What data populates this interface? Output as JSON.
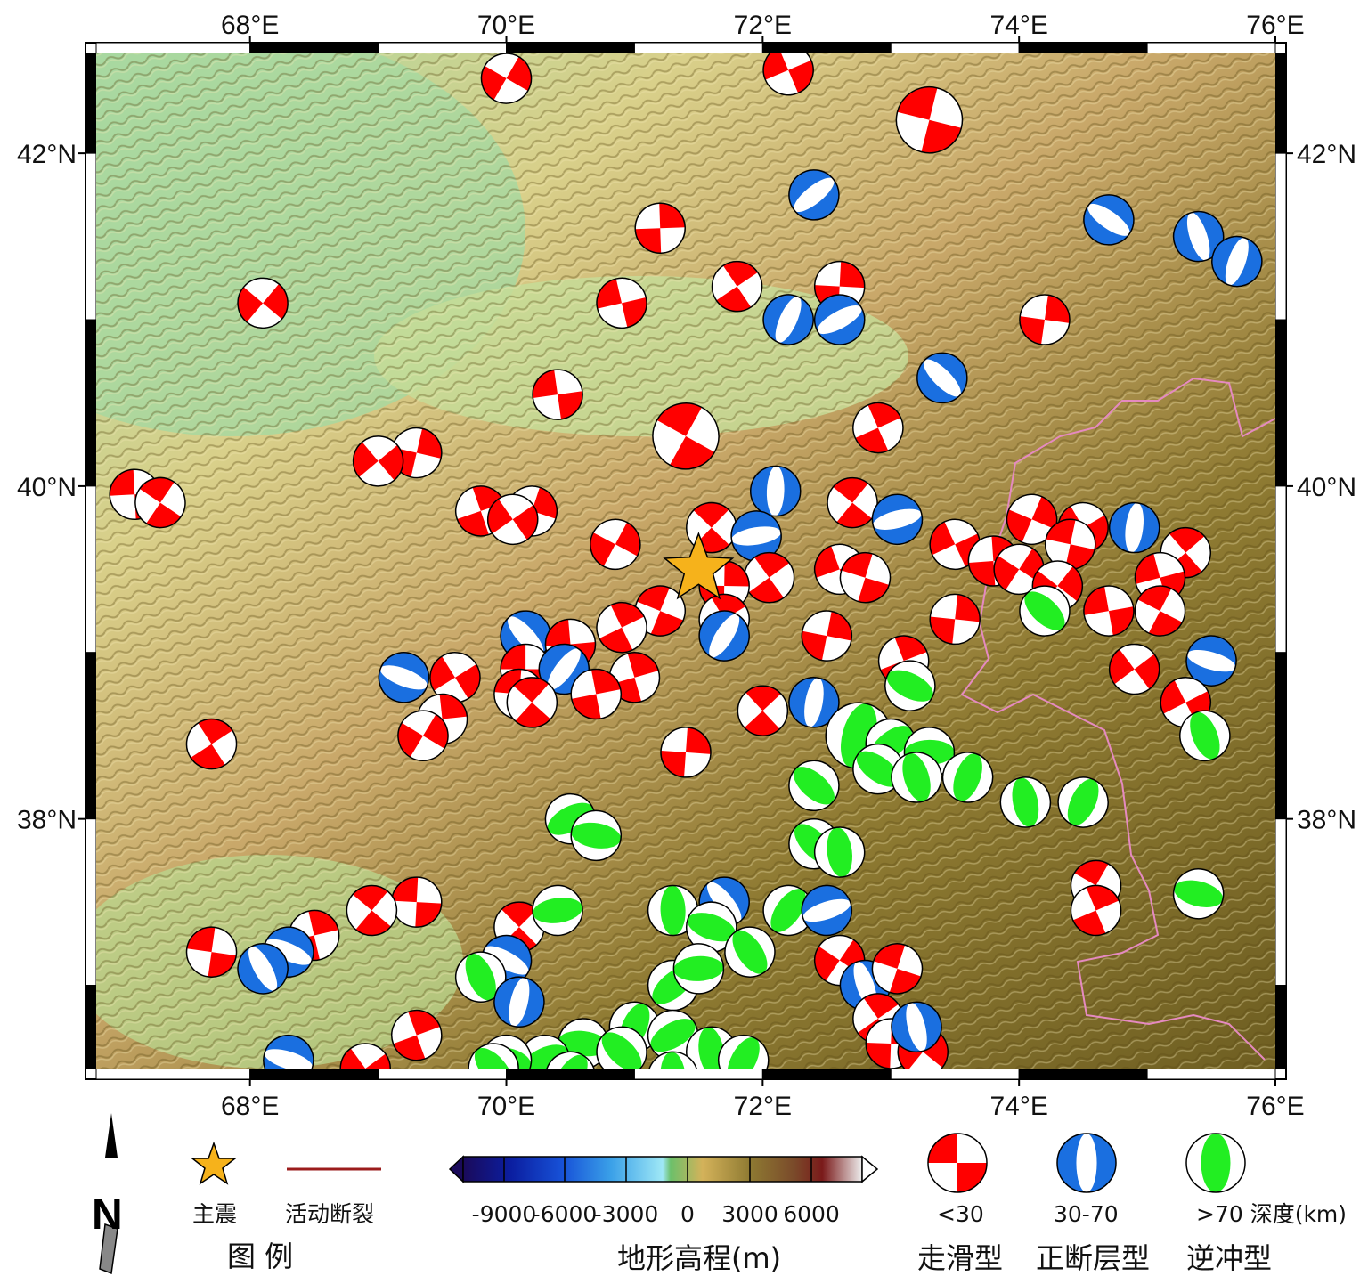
{
  "map": {
    "lon_range": [
      66.8,
      76.0
    ],
    "lat_range": [
      36.5,
      42.6
    ],
    "lon_ticks": [
      {
        "value": 68,
        "label": "68°E"
      },
      {
        "value": 70,
        "label": "70°E"
      },
      {
        "value": 72,
        "label": "72°E"
      },
      {
        "value": 74,
        "label": "74°E"
      },
      {
        "value": 76,
        "label": "76°E"
      }
    ],
    "lat_ticks": [
      {
        "value": 42,
        "label": "42°N"
      },
      {
        "value": 40,
        "label": "40°N"
      },
      {
        "value": 38,
        "label": "38°N"
      }
    ],
    "terrain_colors": {
      "lowland": "#a8d8a0",
      "plain": "#d9d08a",
      "foothill": "#c9a86a",
      "mountain": "#8e7a32",
      "high": "#6f5f22"
    },
    "border_color": "#e58ac0",
    "mainshock": {
      "lon": 71.5,
      "lat": 39.5,
      "color": "#f6b21b"
    },
    "mechanisms": [
      {
        "lon": 70.0,
        "lat": 42.45,
        "type": "strike-slip",
        "size": "m"
      },
      {
        "lon": 72.2,
        "lat": 42.5,
        "type": "strike-slip",
        "size": "m"
      },
      {
        "lon": 73.3,
        "lat": 42.2,
        "type": "strike-slip",
        "size": "l"
      },
      {
        "lon": 72.4,
        "lat": 41.75,
        "type": "normal",
        "size": "m"
      },
      {
        "lon": 71.2,
        "lat": 41.55,
        "type": "strike-slip",
        "size": "m"
      },
      {
        "lon": 74.7,
        "lat": 41.6,
        "type": "normal",
        "size": "m"
      },
      {
        "lon": 75.4,
        "lat": 41.5,
        "type": "normal",
        "size": "m"
      },
      {
        "lon": 75.7,
        "lat": 41.35,
        "type": "normal",
        "size": "m"
      },
      {
        "lon": 71.8,
        "lat": 41.2,
        "type": "strike-slip",
        "size": "m"
      },
      {
        "lon": 72.6,
        "lat": 41.2,
        "type": "strike-slip",
        "size": "m"
      },
      {
        "lon": 68.1,
        "lat": 41.1,
        "type": "strike-slip",
        "size": "m"
      },
      {
        "lon": 70.9,
        "lat": 41.1,
        "type": "strike-slip",
        "size": "m"
      },
      {
        "lon": 72.2,
        "lat": 41.0,
        "type": "normal",
        "size": "m"
      },
      {
        "lon": 72.6,
        "lat": 41.0,
        "type": "normal",
        "size": "m"
      },
      {
        "lon": 74.2,
        "lat": 41.0,
        "type": "strike-slip",
        "size": "m"
      },
      {
        "lon": 73.4,
        "lat": 40.65,
        "type": "normal",
        "size": "m"
      },
      {
        "lon": 70.4,
        "lat": 40.55,
        "type": "strike-slip",
        "size": "m"
      },
      {
        "lon": 71.4,
        "lat": 40.3,
        "type": "strike-slip",
        "size": "l"
      },
      {
        "lon": 72.9,
        "lat": 40.35,
        "type": "strike-slip",
        "size": "m"
      },
      {
        "lon": 69.3,
        "lat": 40.2,
        "type": "strike-slip",
        "size": "m"
      },
      {
        "lon": 69.0,
        "lat": 40.15,
        "type": "strike-slip",
        "size": "m"
      },
      {
        "lon": 67.1,
        "lat": 39.95,
        "type": "strike-slip",
        "size": "m"
      },
      {
        "lon": 67.3,
        "lat": 39.9,
        "type": "strike-slip",
        "size": "m"
      },
      {
        "lon": 69.8,
        "lat": 39.85,
        "type": "strike-slip",
        "size": "m"
      },
      {
        "lon": 70.2,
        "lat": 39.85,
        "type": "strike-slip",
        "size": "m"
      },
      {
        "lon": 70.05,
        "lat": 39.8,
        "type": "strike-slip",
        "size": "m"
      },
      {
        "lon": 72.1,
        "lat": 39.97,
        "type": "normal",
        "size": "m"
      },
      {
        "lon": 72.7,
        "lat": 39.9,
        "type": "strike-slip",
        "size": "m"
      },
      {
        "lon": 73.05,
        "lat": 39.8,
        "type": "normal",
        "size": "m"
      },
      {
        "lon": 74.1,
        "lat": 39.8,
        "type": "strike-slip",
        "size": "m"
      },
      {
        "lon": 74.5,
        "lat": 39.75,
        "type": "strike-slip",
        "size": "m"
      },
      {
        "lon": 74.9,
        "lat": 39.75,
        "type": "normal",
        "size": "m"
      },
      {
        "lon": 71.6,
        "lat": 39.75,
        "type": "strike-slip",
        "size": "m"
      },
      {
        "lon": 71.95,
        "lat": 39.7,
        "type": "normal",
        "size": "m"
      },
      {
        "lon": 70.85,
        "lat": 39.65,
        "type": "strike-slip",
        "size": "m"
      },
      {
        "lon": 73.5,
        "lat": 39.65,
        "type": "strike-slip",
        "size": "m"
      },
      {
        "lon": 74.4,
        "lat": 39.65,
        "type": "strike-slip",
        "size": "m"
      },
      {
        "lon": 75.3,
        "lat": 39.6,
        "type": "strike-slip",
        "size": "m"
      },
      {
        "lon": 73.8,
        "lat": 39.55,
        "type": "strike-slip",
        "size": "m"
      },
      {
        "lon": 74.0,
        "lat": 39.5,
        "type": "strike-slip",
        "size": "m"
      },
      {
        "lon": 72.6,
        "lat": 39.5,
        "type": "strike-slip",
        "size": "m"
      },
      {
        "lon": 72.8,
        "lat": 39.45,
        "type": "strike-slip",
        "size": "m"
      },
      {
        "lon": 72.05,
        "lat": 39.45,
        "type": "strike-slip",
        "size": "m"
      },
      {
        "lon": 71.7,
        "lat": 39.4,
        "type": "strike-slip",
        "size": "m"
      },
      {
        "lon": 74.3,
        "lat": 39.4,
        "type": "strike-slip",
        "size": "m"
      },
      {
        "lon": 75.1,
        "lat": 39.45,
        "type": "strike-slip",
        "size": "m"
      },
      {
        "lon": 71.2,
        "lat": 39.25,
        "type": "strike-slip",
        "size": "m"
      },
      {
        "lon": 71.7,
        "lat": 39.2,
        "type": "strike-slip",
        "size": "m"
      },
      {
        "lon": 73.5,
        "lat": 39.2,
        "type": "strike-slip",
        "size": "m"
      },
      {
        "lon": 74.2,
        "lat": 39.25,
        "type": "thrust",
        "size": "m"
      },
      {
        "lon": 74.7,
        "lat": 39.25,
        "type": "strike-slip",
        "size": "m"
      },
      {
        "lon": 75.1,
        "lat": 39.25,
        "type": "strike-slip",
        "size": "m"
      },
      {
        "lon": 70.9,
        "lat": 39.15,
        "type": "strike-slip",
        "size": "m"
      },
      {
        "lon": 72.5,
        "lat": 39.1,
        "type": "strike-slip",
        "size": "m"
      },
      {
        "lon": 70.15,
        "lat": 39.1,
        "type": "normal",
        "size": "m"
      },
      {
        "lon": 70.5,
        "lat": 39.05,
        "type": "strike-slip",
        "size": "m"
      },
      {
        "lon": 71.7,
        "lat": 39.1,
        "type": "normal",
        "size": "m"
      },
      {
        "lon": 73.1,
        "lat": 38.95,
        "type": "strike-slip",
        "size": "m"
      },
      {
        "lon": 75.5,
        "lat": 38.95,
        "type": "normal",
        "size": "m"
      },
      {
        "lon": 74.9,
        "lat": 38.9,
        "type": "strike-slip",
        "size": "m"
      },
      {
        "lon": 70.15,
        "lat": 38.9,
        "type": "strike-slip",
        "size": "m"
      },
      {
        "lon": 70.45,
        "lat": 38.9,
        "type": "normal",
        "size": "m"
      },
      {
        "lon": 71.0,
        "lat": 38.85,
        "type": "strike-slip",
        "size": "m"
      },
      {
        "lon": 69.2,
        "lat": 38.85,
        "type": "normal",
        "size": "m"
      },
      {
        "lon": 69.6,
        "lat": 38.85,
        "type": "strike-slip",
        "size": "m"
      },
      {
        "lon": 70.1,
        "lat": 38.75,
        "type": "strike-slip",
        "size": "m"
      },
      {
        "lon": 70.2,
        "lat": 38.7,
        "type": "strike-slip",
        "size": "m"
      },
      {
        "lon": 70.7,
        "lat": 38.75,
        "type": "strike-slip",
        "size": "m"
      },
      {
        "lon": 73.15,
        "lat": 38.8,
        "type": "thrust",
        "size": "m"
      },
      {
        "lon": 75.3,
        "lat": 38.7,
        "type": "strike-slip",
        "size": "m"
      },
      {
        "lon": 72.4,
        "lat": 38.7,
        "type": "normal",
        "size": "m"
      },
      {
        "lon": 72.0,
        "lat": 38.65,
        "type": "strike-slip",
        "size": "m"
      },
      {
        "lon": 69.5,
        "lat": 38.6,
        "type": "strike-slip",
        "size": "m"
      },
      {
        "lon": 69.35,
        "lat": 38.5,
        "type": "strike-slip",
        "size": "m"
      },
      {
        "lon": 75.45,
        "lat": 38.5,
        "type": "thrust",
        "size": "m"
      },
      {
        "lon": 72.75,
        "lat": 38.5,
        "type": "thrust",
        "size": "l"
      },
      {
        "lon": 73.0,
        "lat": 38.45,
        "type": "thrust",
        "size": "m"
      },
      {
        "lon": 73.3,
        "lat": 38.4,
        "type": "thrust",
        "size": "m"
      },
      {
        "lon": 72.9,
        "lat": 38.3,
        "type": "thrust",
        "size": "m"
      },
      {
        "lon": 73.2,
        "lat": 38.25,
        "type": "thrust",
        "size": "m"
      },
      {
        "lon": 73.6,
        "lat": 38.25,
        "type": "thrust",
        "size": "m"
      },
      {
        "lon": 67.7,
        "lat": 38.45,
        "type": "strike-slip",
        "size": "m"
      },
      {
        "lon": 71.4,
        "lat": 38.4,
        "type": "strike-slip",
        "size": "m"
      },
      {
        "lon": 72.4,
        "lat": 38.2,
        "type": "thrust",
        "size": "m"
      },
      {
        "lon": 74.05,
        "lat": 38.1,
        "type": "thrust",
        "size": "m"
      },
      {
        "lon": 74.5,
        "lat": 38.1,
        "type": "thrust",
        "size": "m"
      },
      {
        "lon": 70.5,
        "lat": 38.0,
        "type": "thrust",
        "size": "m"
      },
      {
        "lon": 70.7,
        "lat": 37.9,
        "type": "thrust",
        "size": "m"
      },
      {
        "lon": 72.4,
        "lat": 37.85,
        "type": "thrust",
        "size": "m"
      },
      {
        "lon": 72.6,
        "lat": 37.8,
        "type": "thrust",
        "size": "m"
      },
      {
        "lon": 74.6,
        "lat": 37.6,
        "type": "strike-slip",
        "size": "m"
      },
      {
        "lon": 74.6,
        "lat": 37.45,
        "type": "strike-slip",
        "size": "m"
      },
      {
        "lon": 75.4,
        "lat": 37.55,
        "type": "thrust",
        "size": "m"
      },
      {
        "lon": 71.7,
        "lat": 37.5,
        "type": "normal",
        "size": "m"
      },
      {
        "lon": 71.3,
        "lat": 37.45,
        "type": "thrust",
        "size": "m"
      },
      {
        "lon": 72.2,
        "lat": 37.45,
        "type": "thrust",
        "size": "m"
      },
      {
        "lon": 72.5,
        "lat": 37.45,
        "type": "normal",
        "size": "m"
      },
      {
        "lon": 71.6,
        "lat": 37.35,
        "type": "thrust",
        "size": "m"
      },
      {
        "lon": 71.9,
        "lat": 37.2,
        "type": "thrust",
        "size": "m"
      },
      {
        "lon": 69.3,
        "lat": 37.5,
        "type": "strike-slip",
        "size": "m"
      },
      {
        "lon": 68.95,
        "lat": 37.45,
        "type": "strike-slip",
        "size": "m"
      },
      {
        "lon": 68.5,
        "lat": 37.3,
        "type": "strike-slip",
        "size": "m"
      },
      {
        "lon": 68.3,
        "lat": 37.2,
        "type": "normal",
        "size": "m"
      },
      {
        "lon": 68.1,
        "lat": 37.1,
        "type": "normal",
        "size": "m"
      },
      {
        "lon": 67.7,
        "lat": 37.2,
        "type": "strike-slip",
        "size": "m"
      },
      {
        "lon": 70.1,
        "lat": 37.35,
        "type": "strike-slip",
        "size": "m"
      },
      {
        "lon": 70.4,
        "lat": 37.45,
        "type": "thrust",
        "size": "m"
      },
      {
        "lon": 70.0,
        "lat": 37.15,
        "type": "normal",
        "size": "m"
      },
      {
        "lon": 69.8,
        "lat": 37.05,
        "type": "thrust",
        "size": "m"
      },
      {
        "lon": 70.1,
        "lat": 36.9,
        "type": "normal",
        "size": "m"
      },
      {
        "lon": 71.3,
        "lat": 37.0,
        "type": "thrust",
        "size": "m"
      },
      {
        "lon": 71.5,
        "lat": 37.1,
        "type": "thrust",
        "size": "m"
      },
      {
        "lon": 72.6,
        "lat": 37.15,
        "type": "strike-slip",
        "size": "m"
      },
      {
        "lon": 72.8,
        "lat": 37.0,
        "type": "normal",
        "size": "m"
      },
      {
        "lon": 73.05,
        "lat": 37.1,
        "type": "strike-slip",
        "size": "m"
      },
      {
        "lon": 72.9,
        "lat": 36.8,
        "type": "strike-slip",
        "size": "m"
      },
      {
        "lon": 73.0,
        "lat": 36.65,
        "type": "strike-slip",
        "size": "m"
      },
      {
        "lon": 73.25,
        "lat": 36.6,
        "type": "strike-slip",
        "size": "m"
      },
      {
        "lon": 73.2,
        "lat": 36.75,
        "type": "normal",
        "size": "m"
      },
      {
        "lon": 71.0,
        "lat": 36.75,
        "type": "thrust",
        "size": "m"
      },
      {
        "lon": 71.3,
        "lat": 36.7,
        "type": "thrust",
        "size": "m"
      },
      {
        "lon": 70.6,
        "lat": 36.65,
        "type": "thrust",
        "size": "m"
      },
      {
        "lon": 70.9,
        "lat": 36.6,
        "type": "thrust",
        "size": "m"
      },
      {
        "lon": 71.6,
        "lat": 36.6,
        "type": "thrust",
        "size": "m"
      },
      {
        "lon": 71.85,
        "lat": 36.55,
        "type": "thrust",
        "size": "m"
      },
      {
        "lon": 70.3,
        "lat": 36.55,
        "type": "thrust",
        "size": "m"
      },
      {
        "lon": 70.0,
        "lat": 36.55,
        "type": "thrust",
        "size": "m"
      },
      {
        "lon": 69.9,
        "lat": 36.5,
        "type": "thrust",
        "size": "m"
      },
      {
        "lon": 71.3,
        "lat": 36.45,
        "type": "thrust",
        "size": "m"
      },
      {
        "lon": 70.5,
        "lat": 36.45,
        "type": "thrust",
        "size": "m"
      },
      {
        "lon": 69.3,
        "lat": 36.7,
        "type": "strike-slip",
        "size": "m"
      },
      {
        "lon": 68.3,
        "lat": 36.55,
        "type": "normal",
        "size": "m"
      },
      {
        "lon": 68.9,
        "lat": 36.5,
        "type": "strike-slip",
        "size": "m"
      }
    ],
    "colors": {
      "strike-slip": "#ff0000",
      "normal": "#1a6fe0",
      "thrust": "#22ee22"
    }
  },
  "legend": {
    "title": "图   例",
    "mainshock_label": "主震",
    "fault_label": "活动断裂",
    "fault_color": "#9b1c1c",
    "elevation_title": "地形高程(m)",
    "elevation_ticks": [
      "-9000",
      "-6000",
      "-3000",
      "0",
      "3000",
      "6000"
    ],
    "mech_strike_slip": {
      "depth": "<30",
      "name": "走滑型"
    },
    "mech_normal": {
      "depth": "30-70",
      "name": "正断层型"
    },
    "mech_thrust": {
      "depth": ">70 深度(km)",
      "name": "逆冲型"
    },
    "north_letter": "N"
  }
}
